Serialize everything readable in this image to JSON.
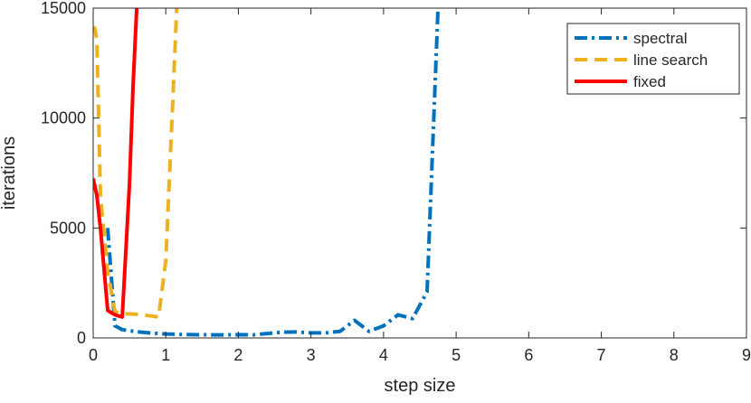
{
  "chart_data": {
    "type": "line",
    "xlabel": "step size",
    "ylabel": "iterations",
    "xlim": [
      0,
      9
    ],
    "ylim": [
      0,
      15000
    ],
    "xticks": [
      0,
      1,
      2,
      3,
      4,
      5,
      6,
      7,
      8,
      9
    ],
    "yticks": [
      0,
      5000,
      10000,
      15000
    ],
    "grid": false,
    "legend_position": "top-right",
    "series": [
      {
        "name": "spectral",
        "color": "#0072BD",
        "line_style": "dash-dot",
        "x": [
          0.2,
          0.3,
          0.4,
          0.6,
          0.8,
          1.0,
          1.2,
          1.4,
          1.6,
          1.8,
          2.0,
          2.2,
          2.4,
          2.6,
          2.8,
          3.0,
          3.2,
          3.4,
          3.6,
          3.8,
          4.0,
          4.2,
          4.4,
          4.6,
          4.75
        ],
        "y": [
          5000,
          550,
          380,
          280,
          220,
          180,
          160,
          150,
          140,
          140,
          150,
          140,
          200,
          260,
          270,
          230,
          230,
          300,
          800,
          300,
          550,
          1050,
          880,
          2100,
          15000
        ]
      },
      {
        "name": "line search",
        "color": "#EDB120",
        "line_style": "dashed",
        "x": [
          0.0,
          0.02,
          0.05,
          0.1,
          0.2,
          0.3,
          0.4,
          0.6,
          0.8,
          0.9,
          1.0,
          1.1,
          1.15
        ],
        "y": [
          14000,
          14100,
          13600,
          6500,
          3000,
          1200,
          1100,
          1080,
          1000,
          950,
          3500,
          11000,
          15000
        ]
      },
      {
        "name": "fixed",
        "color": "#FF0000",
        "line_style": "solid",
        "x": [
          0.0,
          0.05,
          0.1,
          0.2,
          0.3,
          0.4,
          0.5,
          0.55,
          0.6
        ],
        "y": [
          7250,
          6500,
          5000,
          1250,
          1050,
          950,
          7000,
          11500,
          15000
        ]
      }
    ]
  }
}
